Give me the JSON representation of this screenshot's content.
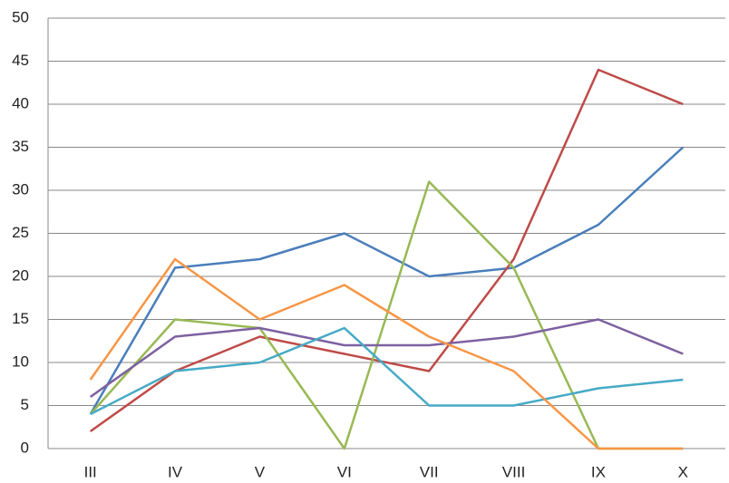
{
  "chart_data": {
    "type": "line",
    "categories": [
      "III",
      "IV",
      "V",
      "VI",
      "VII",
      "VIII",
      "IX",
      "X"
    ],
    "series": [
      {
        "color": "#4a7ebb",
        "values": [
          4,
          21,
          22,
          25,
          20,
          21,
          26,
          35
        ]
      },
      {
        "color": "#be4b48",
        "values": [
          2,
          9,
          13,
          11,
          9,
          22,
          44,
          40
        ]
      },
      {
        "color": "#98b954",
        "values": [
          4,
          15,
          14,
          0,
          31,
          21,
          0,
          0
        ]
      },
      {
        "color": "#7d60a0",
        "values": [
          6,
          13,
          14,
          12,
          12,
          13,
          15,
          11
        ]
      },
      {
        "color": "#46aac5",
        "values": [
          4,
          9,
          10,
          14,
          5,
          5,
          7,
          8
        ]
      },
      {
        "color": "#f79646",
        "values": [
          8,
          22,
          15,
          19,
          13,
          9,
          0,
          0
        ]
      }
    ],
    "ylim": [
      0,
      50
    ],
    "yticks": [
      0,
      5,
      10,
      15,
      20,
      25,
      30,
      35,
      40,
      45,
      50
    ],
    "grid": true
  }
}
